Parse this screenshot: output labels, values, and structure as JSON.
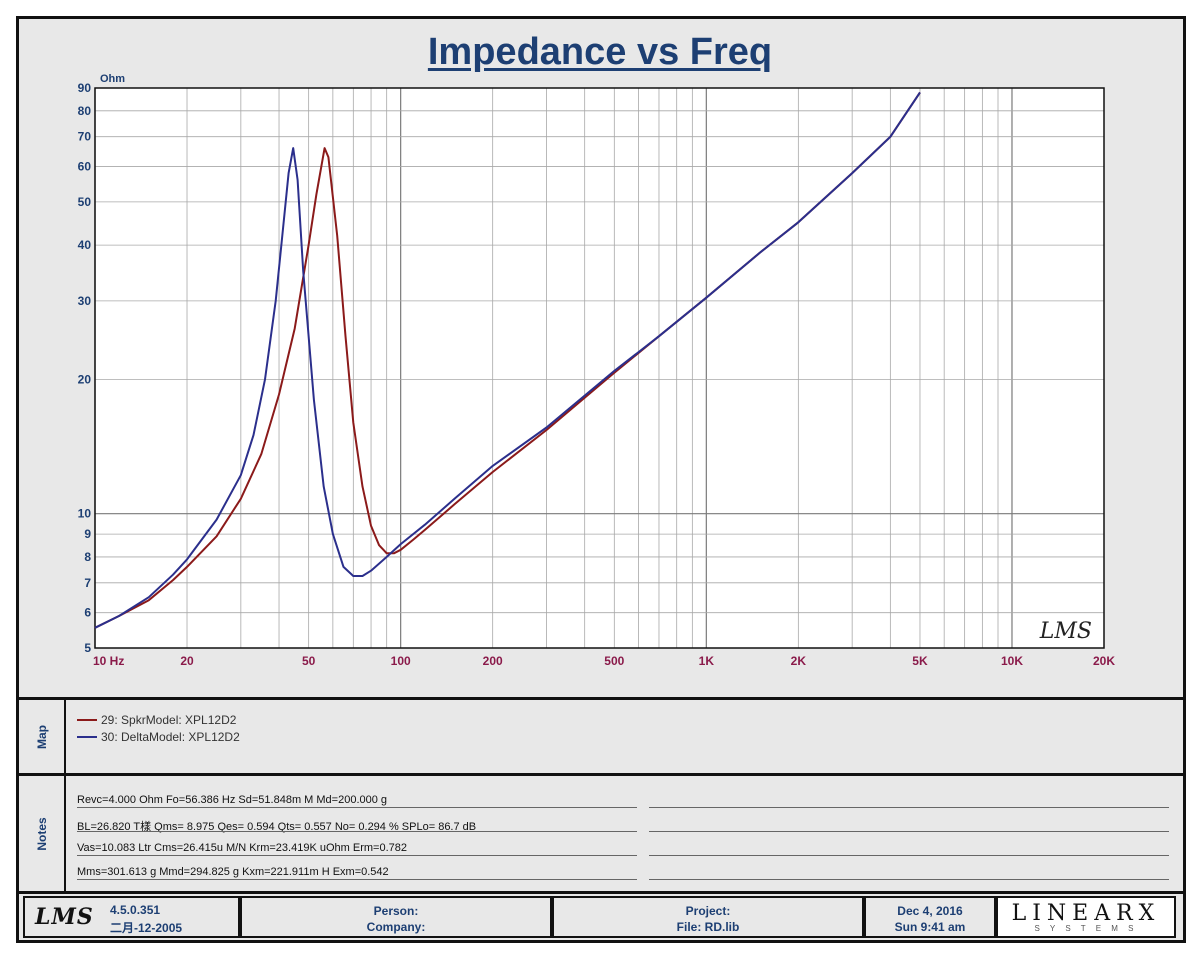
{
  "title": "Impedance vs Freq",
  "chart_data": {
    "type": "line",
    "title": "Impedance vs Freq",
    "ylabel": "Ohm",
    "xlabel": "",
    "x_scale": "log",
    "y_scale": "log",
    "xlim": [
      10,
      20000
    ],
    "ylim": [
      5,
      90
    ],
    "x_ticks": [
      {
        "value": 10,
        "label": "10  Hz"
      },
      {
        "value": 20,
        "label": "20"
      },
      {
        "value": 50,
        "label": "50"
      },
      {
        "value": 100,
        "label": "100"
      },
      {
        "value": 200,
        "label": "200"
      },
      {
        "value": 500,
        "label": "500"
      },
      {
        "value": 1000,
        "label": "1K"
      },
      {
        "value": 2000,
        "label": "2K"
      },
      {
        "value": 5000,
        "label": "5K"
      },
      {
        "value": 10000,
        "label": "10K"
      },
      {
        "value": 20000,
        "label": "20K"
      }
    ],
    "y_ticks": [
      {
        "value": 5,
        "label": "5"
      },
      {
        "value": 6,
        "label": "6"
      },
      {
        "value": 7,
        "label": "7"
      },
      {
        "value": 8,
        "label": "8"
      },
      {
        "value": 9,
        "label": "9"
      },
      {
        "value": 10,
        "label": "10"
      },
      {
        "value": 20,
        "label": "20"
      },
      {
        "value": 30,
        "label": "30"
      },
      {
        "value": 40,
        "label": "40"
      },
      {
        "value": 50,
        "label": "50"
      },
      {
        "value": 60,
        "label": "60"
      },
      {
        "value": 70,
        "label": "70"
      },
      {
        "value": 80,
        "label": "80"
      },
      {
        "value": 90,
        "label": "90"
      }
    ],
    "grid": true,
    "watermark": "LMS",
    "series": [
      {
        "name": "29: SpkrModel: XPL12D2",
        "color": "#8b1a1a",
        "points": [
          [
            10,
            5.55
          ],
          [
            12,
            5.9
          ],
          [
            15,
            6.4
          ],
          [
            18,
            7.1
          ],
          [
            20,
            7.6
          ],
          [
            25,
            8.9
          ],
          [
            30,
            10.8
          ],
          [
            35,
            13.6
          ],
          [
            40,
            18.5
          ],
          [
            45,
            26
          ],
          [
            50,
            40
          ],
          [
            53,
            52
          ],
          [
            56.4,
            66
          ],
          [
            58,
            63
          ],
          [
            62,
            42
          ],
          [
            66,
            25
          ],
          [
            70,
            16
          ],
          [
            75,
            11.5
          ],
          [
            80,
            9.4
          ],
          [
            85,
            8.5
          ],
          [
            90,
            8.15
          ],
          [
            95,
            8.15
          ],
          [
            100,
            8.3
          ],
          [
            110,
            8.75
          ],
          [
            120,
            9.2
          ],
          [
            150,
            10.5
          ],
          [
            200,
            12.4
          ],
          [
            300,
            15.4
          ],
          [
            500,
            20.7
          ],
          [
            700,
            25
          ],
          [
            1000,
            30.5
          ],
          [
            1500,
            38.5
          ],
          [
            2000,
            45
          ],
          [
            3000,
            58
          ],
          [
            4000,
            70
          ],
          [
            5000,
            88
          ]
        ]
      },
      {
        "name": "30: DeltaModel: XPL12D2",
        "color": "#2b2f8c",
        "points": [
          [
            10,
            5.55
          ],
          [
            12,
            5.9
          ],
          [
            15,
            6.5
          ],
          [
            18,
            7.3
          ],
          [
            20,
            7.9
          ],
          [
            25,
            9.7
          ],
          [
            30,
            12.2
          ],
          [
            33,
            15
          ],
          [
            36,
            20
          ],
          [
            39,
            30
          ],
          [
            41,
            42
          ],
          [
            43,
            58
          ],
          [
            44.5,
            66
          ],
          [
            46,
            56
          ],
          [
            48,
            35
          ],
          [
            52,
            18
          ],
          [
            56,
            11.5
          ],
          [
            60,
            9
          ],
          [
            65,
            7.6
          ],
          [
            70,
            7.25
          ],
          [
            75,
            7.25
          ],
          [
            80,
            7.45
          ],
          [
            90,
            8.0
          ],
          [
            100,
            8.55
          ],
          [
            120,
            9.45
          ],
          [
            150,
            10.8
          ],
          [
            200,
            12.8
          ],
          [
            300,
            15.6
          ],
          [
            500,
            20.9
          ],
          [
            700,
            25
          ],
          [
            1000,
            30.5
          ],
          [
            1500,
            38.5
          ],
          [
            2000,
            45
          ],
          [
            3000,
            58
          ],
          [
            4000,
            70
          ],
          [
            5000,
            88
          ]
        ]
      }
    ]
  },
  "map": {
    "label": "Map",
    "items": [
      {
        "text": "29: SpkrModel: XPL12D2",
        "color": "#8b1a1a"
      },
      {
        "text": "30: DeltaModel: XPL12D2",
        "color": "#2b2f8c"
      }
    ]
  },
  "notes": {
    "label": "Notes",
    "lines": [
      "Revc=4.000 Ohm  Fo=56.386 Hz  Sd=51.848m M    Md=200.000 g",
      "BL=26.820 T樣  Qms= 8.975  Qes= 0.594  Qts= 0.557  No= 0.294 %  SPLo= 86.7 dB",
      "Vas=10.083 Ltr  Cms=26.415u M/N  Krm=23.419K uOhm  Erm=0.782",
      "Mms=301.613 g  Mmd=294.825 g  Kxm=221.911m H  Exm=0.542"
    ]
  },
  "footer": {
    "logo": "LMS",
    "version": "4.5.0.351",
    "build_date": "二月-12-2005",
    "person_label": "Person:",
    "company_label": "Company:",
    "project_label": "Project:",
    "file_label": "File: RD.lib",
    "date": "Dec  4, 2016",
    "time": "Sun  9:41 am",
    "brand": "LINEARX",
    "brand_sub": "S Y S T E M S"
  }
}
